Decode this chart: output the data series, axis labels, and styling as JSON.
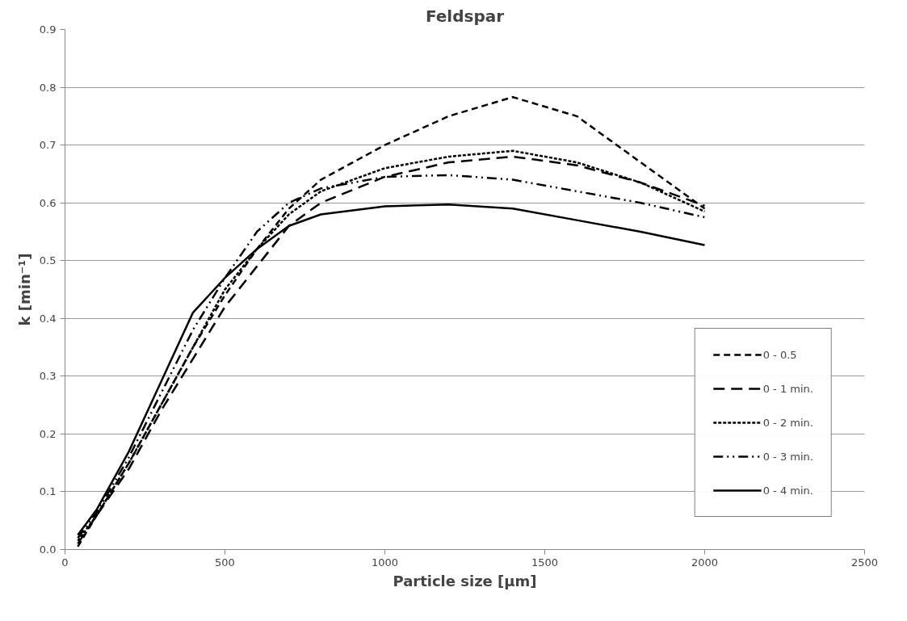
{
  "chart_data": {
    "type": "line",
    "title": "Feldspar",
    "xlabel": "Particle size [µm]",
    "ylabel": "k [min⁻¹]",
    "x": [
      40,
      100,
      200,
      300,
      400,
      500,
      600,
      700,
      800,
      1000,
      1200,
      1400,
      1600,
      1800,
      2000
    ],
    "series": [
      {
        "name": "0 - 0.5",
        "color": "#000000",
        "line_style": "dashed",
        "values": [
          0.005,
          0.06,
          0.15,
          0.25,
          0.35,
          0.44,
          0.52,
          0.59,
          0.64,
          0.7,
          0.75,
          0.783,
          0.75,
          0.67,
          0.59
        ]
      },
      {
        "name": "0 - 1 min.",
        "color": "#000000",
        "line_style": "dashed",
        "values": [
          0.01,
          0.06,
          0.14,
          0.24,
          0.33,
          0.42,
          0.49,
          0.56,
          0.6,
          0.645,
          0.67,
          0.68,
          0.665,
          0.635,
          0.595
        ]
      },
      {
        "name": "0 - 2 min.",
        "color": "#000000",
        "line_style": "dotted",
        "values": [
          0.015,
          0.06,
          0.15,
          0.25,
          0.35,
          0.45,
          0.52,
          0.58,
          0.62,
          0.66,
          0.68,
          0.69,
          0.67,
          0.635,
          0.585
        ]
      },
      {
        "name": "0 - 3 min.",
        "color": "#000000",
        "line_style": "dashed",
        "values": [
          0.02,
          0.065,
          0.16,
          0.27,
          0.38,
          0.47,
          0.55,
          0.6,
          0.625,
          0.645,
          0.648,
          0.64,
          0.62,
          0.6,
          0.575
        ]
      },
      {
        "name": "0 - 4 min.",
        "color": "#000000",
        "line_style": "solid",
        "values": [
          0.025,
          0.07,
          0.17,
          0.29,
          0.41,
          0.47,
          0.52,
          0.56,
          0.58,
          0.594,
          0.597,
          0.59,
          0.57,
          0.55,
          0.527
        ]
      }
    ],
    "xlim": [
      0,
      2500
    ],
    "xticks": [
      0,
      500,
      1000,
      1500,
      2000,
      2500
    ],
    "ylim": [
      0,
      0.9
    ],
    "yticks": [
      {
        "value": 0,
        "label": "0.0"
      },
      0.1,
      0.2,
      0.3,
      0.4,
      0.5,
      0.6,
      0.7,
      0.8,
      0.9
    ],
    "grid": "y",
    "legend": "bottom right",
    "marker": "none"
  }
}
